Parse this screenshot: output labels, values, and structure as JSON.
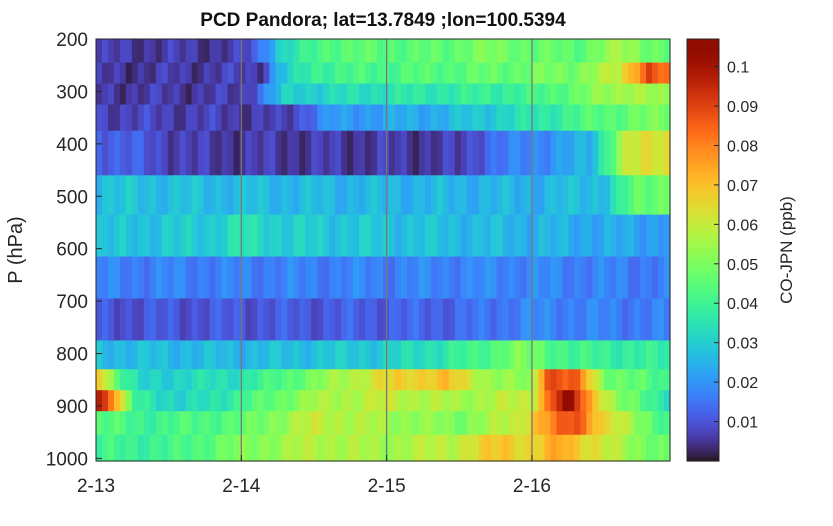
{
  "chart_data": {
    "type": "heatmap",
    "title": "PCD Pandora; lat=13.7849 ;lon=100.5394",
    "xlabel": "",
    "ylabel": "P (hPa)",
    "colorbar_label": "CO-JPN (ppb)",
    "colormap": "turbo",
    "x_ticks": [
      "2-13",
      "2-14",
      "2-15",
      "2-16"
    ],
    "x_tick_days": [
      0,
      1,
      2,
      3
    ],
    "xlim_days": [
      0,
      3.95
    ],
    "y_ticks": [
      200,
      300,
      400,
      500,
      600,
      700,
      800,
      900,
      1000
    ],
    "ylim": [
      200,
      1005
    ],
    "colorbar_ticks": [
      0.01,
      0.02,
      0.03,
      0.04,
      0.05,
      0.06,
      0.07,
      0.08,
      0.09,
      0.1
    ],
    "clim": [
      0.0,
      0.107
    ],
    "vertical_gridlines_at_ticks": true,
    "layers": [
      {
        "p_top": 200,
        "p_bottom": 245,
        "keys": [
          [
            0,
            0.006
          ],
          [
            1.0,
            0.006
          ],
          [
            1.1,
            0.012
          ],
          [
            1.25,
            0.03
          ],
          [
            1.6,
            0.045
          ],
          [
            2.4,
            0.045
          ],
          [
            2.6,
            0.05
          ],
          [
            3.3,
            0.045
          ],
          [
            3.6,
            0.055
          ],
          [
            3.95,
            0.045
          ]
        ]
      },
      {
        "p_top": 245,
        "p_bottom": 285,
        "keys": [
          [
            0,
            0.005
          ],
          [
            1.15,
            0.007
          ],
          [
            1.25,
            0.025
          ],
          [
            1.5,
            0.04
          ],
          [
            2.5,
            0.045
          ],
          [
            3.0,
            0.048
          ],
          [
            3.3,
            0.05
          ],
          [
            3.6,
            0.06
          ],
          [
            3.8,
            0.09
          ],
          [
            3.95,
            0.08
          ]
        ]
      },
      {
        "p_top": 285,
        "p_bottom": 325,
        "keys": [
          [
            0,
            0.006
          ],
          [
            1.0,
            0.006
          ],
          [
            1.1,
            0.012
          ],
          [
            1.3,
            0.03
          ],
          [
            2.0,
            0.035
          ],
          [
            3.0,
            0.04
          ],
          [
            3.4,
            0.05
          ],
          [
            3.7,
            0.058
          ],
          [
            3.95,
            0.05
          ]
        ]
      },
      {
        "p_top": 325,
        "p_bottom": 375,
        "keys": [
          [
            0,
            0.008
          ],
          [
            1.3,
            0.006
          ],
          [
            1.6,
            0.02
          ],
          [
            2.4,
            0.025
          ],
          [
            3.0,
            0.035
          ],
          [
            3.5,
            0.045
          ],
          [
            3.95,
            0.05
          ]
        ]
      },
      {
        "p_top": 375,
        "p_bottom": 460,
        "keys": [
          [
            0,
            0.014
          ],
          [
            0.7,
            0.006
          ],
          [
            2.5,
            0.006
          ],
          [
            2.7,
            0.014
          ],
          [
            3.0,
            0.018
          ],
          [
            3.4,
            0.025
          ],
          [
            3.65,
            0.06
          ],
          [
            3.95,
            0.065
          ]
        ]
      },
      {
        "p_top": 460,
        "p_bottom": 535,
        "keys": [
          [
            0,
            0.028
          ],
          [
            1.5,
            0.026
          ],
          [
            3.0,
            0.025
          ],
          [
            3.5,
            0.028
          ],
          [
            3.7,
            0.045
          ],
          [
            3.95,
            0.05
          ]
        ]
      },
      {
        "p_top": 535,
        "p_bottom": 615,
        "keys": [
          [
            0,
            0.027
          ],
          [
            0.8,
            0.03
          ],
          [
            1.0,
            0.035
          ],
          [
            1.3,
            0.03
          ],
          [
            2.5,
            0.027
          ],
          [
            3.95,
            0.022
          ]
        ]
      },
      {
        "p_top": 615,
        "p_bottom": 695,
        "keys": [
          [
            0,
            0.017
          ],
          [
            1.5,
            0.017
          ],
          [
            3.0,
            0.018
          ],
          [
            3.95,
            0.016
          ]
        ]
      },
      {
        "p_top": 695,
        "p_bottom": 775,
        "keys": [
          [
            0,
            0.01
          ],
          [
            1.5,
            0.011
          ],
          [
            2.5,
            0.013
          ],
          [
            3.0,
            0.018
          ],
          [
            3.95,
            0.016
          ]
        ]
      },
      {
        "p_top": 775,
        "p_bottom": 830,
        "keys": [
          [
            0,
            0.027
          ],
          [
            1.0,
            0.026
          ],
          [
            2.0,
            0.03
          ],
          [
            2.6,
            0.04
          ],
          [
            2.9,
            0.05
          ],
          [
            3.3,
            0.04
          ],
          [
            3.95,
            0.037
          ]
        ]
      },
      {
        "p_top": 830,
        "p_bottom": 870,
        "keys": [
          [
            0,
            0.075
          ],
          [
            0.15,
            0.045
          ],
          [
            0.3,
            0.03
          ],
          [
            1.0,
            0.035
          ],
          [
            1.5,
            0.05
          ],
          [
            2.0,
            0.065
          ],
          [
            2.4,
            0.07
          ],
          [
            2.7,
            0.055
          ],
          [
            3.0,
            0.05
          ],
          [
            3.1,
            0.09
          ],
          [
            3.3,
            0.085
          ],
          [
            3.5,
            0.05
          ],
          [
            3.95,
            0.04
          ]
        ]
      },
      {
        "p_top": 870,
        "p_bottom": 910,
        "keys": [
          [
            0,
            0.102
          ],
          [
            0.12,
            0.08
          ],
          [
            0.25,
            0.04
          ],
          [
            0.6,
            0.03
          ],
          [
            1.0,
            0.04
          ],
          [
            1.5,
            0.055
          ],
          [
            2.0,
            0.06
          ],
          [
            2.5,
            0.055
          ],
          [
            3.0,
            0.06
          ],
          [
            3.15,
            0.09
          ],
          [
            3.25,
            0.105
          ],
          [
            3.4,
            0.075
          ],
          [
            3.6,
            0.05
          ],
          [
            3.95,
            0.035
          ]
        ]
      },
      {
        "p_top": 910,
        "p_bottom": 955,
        "keys": [
          [
            0,
            0.045
          ],
          [
            0.3,
            0.04
          ],
          [
            1.0,
            0.045
          ],
          [
            1.5,
            0.06
          ],
          [
            2.0,
            0.055
          ],
          [
            2.5,
            0.05
          ],
          [
            2.9,
            0.06
          ],
          [
            3.15,
            0.08
          ],
          [
            3.3,
            0.09
          ],
          [
            3.5,
            0.065
          ],
          [
            3.95,
            0.04
          ]
        ]
      },
      {
        "p_top": 955,
        "p_bottom": 1005,
        "keys": [
          [
            0,
            0.04
          ],
          [
            0.5,
            0.04
          ],
          [
            1.0,
            0.05
          ],
          [
            1.5,
            0.058
          ],
          [
            2.0,
            0.055
          ],
          [
            2.5,
            0.06
          ],
          [
            2.8,
            0.07
          ],
          [
            3.0,
            0.065
          ],
          [
            3.2,
            0.075
          ],
          [
            3.5,
            0.06
          ],
          [
            3.95,
            0.045
          ]
        ]
      }
    ]
  }
}
